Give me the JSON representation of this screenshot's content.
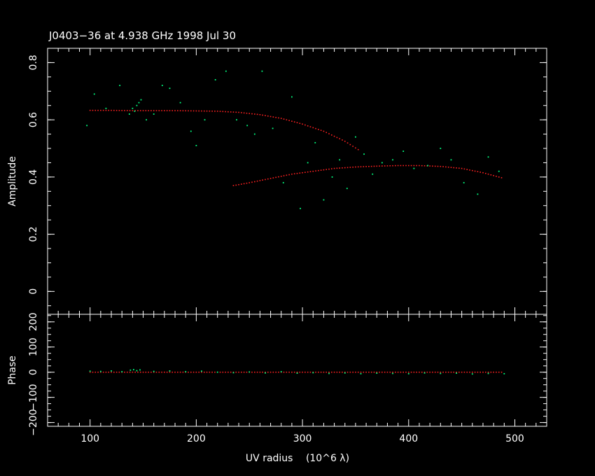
{
  "chart_data": {
    "type": "scatter",
    "title": "J0403−36 at 4.938 GHz 1998 Jul 30",
    "xlabel": "UV radius",
    "xlabel_unit": "(10^6 λ)",
    "xlim": [
      60,
      530
    ],
    "xticks": [
      "100",
      "200",
      "300",
      "400",
      "500"
    ],
    "colors": {
      "data": "#00ff7f",
      "model": "#ff2020",
      "frame": "#ffffff",
      "background": "#000000"
    },
    "panels": [
      {
        "ylabel": "Amplitude",
        "ylim": [
          -0.08,
          0.85
        ],
        "yticks": [
          "0",
          "0.2",
          "0.4",
          "0.6",
          "0.8"
        ],
        "series": [
          {
            "role": "model",
            "points": [
              [
                100,
                0.633
              ],
              [
                120,
                0.633
              ],
              [
                140,
                0.632
              ],
              [
                160,
                0.632
              ],
              [
                180,
                0.632
              ],
              [
                200,
                0.631
              ],
              [
                220,
                0.63
              ],
              [
                240,
                0.626
              ],
              [
                260,
                0.618
              ],
              [
                280,
                0.605
              ],
              [
                300,
                0.585
              ],
              [
                320,
                0.56
              ],
              [
                340,
                0.525
              ],
              [
                355,
                0.49
              ],
              [
                235,
                0.37
              ],
              [
                250,
                0.38
              ],
              [
                270,
                0.395
              ],
              [
                290,
                0.41
              ],
              [
                310,
                0.42
              ],
              [
                330,
                0.43
              ],
              [
                350,
                0.435
              ],
              [
                370,
                0.438
              ],
              [
                390,
                0.44
              ],
              [
                410,
                0.44
              ],
              [
                430,
                0.437
              ],
              [
                450,
                0.43
              ],
              [
                470,
                0.415
              ],
              [
                490,
                0.395
              ]
            ]
          },
          {
            "role": "data",
            "points": [
              [
                97,
                0.58
              ],
              [
                104,
                0.69
              ],
              [
                115,
                0.64
              ],
              [
                128,
                0.72
              ],
              [
                137,
                0.62
              ],
              [
                140,
                0.64
              ],
              [
                142,
                0.63
              ],
              [
                144,
                0.65
              ],
              [
                146,
                0.66
              ],
              [
                148,
                0.67
              ],
              [
                153,
                0.6
              ],
              [
                160,
                0.62
              ],
              [
                168,
                0.72
              ],
              [
                175,
                0.71
              ],
              [
                185,
                0.66
              ],
              [
                195,
                0.56
              ],
              [
                200,
                0.51
              ],
              [
                208,
                0.6
              ],
              [
                218,
                0.74
              ],
              [
                228,
                0.77
              ],
              [
                238,
                0.6
              ],
              [
                248,
                0.58
              ],
              [
                255,
                0.55
              ],
              [
                262,
                0.77
              ],
              [
                272,
                0.57
              ],
              [
                282,
                0.38
              ],
              [
                290,
                0.68
              ],
              [
                298,
                0.29
              ],
              [
                305,
                0.45
              ],
              [
                312,
                0.52
              ],
              [
                320,
                0.32
              ],
              [
                328,
                0.4
              ],
              [
                335,
                0.46
              ],
              [
                342,
                0.36
              ],
              [
                350,
                0.54
              ],
              [
                358,
                0.48
              ],
              [
                366,
                0.41
              ],
              [
                375,
                0.45
              ],
              [
                385,
                0.46
              ],
              [
                395,
                0.49
              ],
              [
                405,
                0.43
              ],
              [
                418,
                0.44
              ],
              [
                430,
                0.5
              ],
              [
                440,
                0.46
              ],
              [
                452,
                0.38
              ],
              [
                465,
                0.34
              ],
              [
                475,
                0.47
              ],
              [
                485,
                0.42
              ]
            ]
          }
        ]
      },
      {
        "ylabel": "Phase",
        "ylim": [
          -215,
          230
        ],
        "yticks": [
          "−200",
          "−100",
          "0",
          "100",
          "200"
        ],
        "series": [
          {
            "role": "model",
            "points": [
              [
                100,
                0
              ],
              [
                150,
                0
              ],
              [
                200,
                0
              ],
              [
                250,
                0
              ],
              [
                300,
                0
              ],
              [
                350,
                0
              ],
              [
                400,
                0
              ],
              [
                450,
                0
              ],
              [
                490,
                0
              ]
            ]
          },
          {
            "role": "data",
            "points": [
              [
                100,
                4
              ],
              [
                110,
                3
              ],
              [
                120,
                5
              ],
              [
                130,
                2
              ],
              [
                138,
                8
              ],
              [
                141,
                10
              ],
              [
                144,
                6
              ],
              [
                147,
                9
              ],
              [
                160,
                3
              ],
              [
                175,
                5
              ],
              [
                190,
                2
              ],
              [
                205,
                4
              ],
              [
                220,
                0
              ],
              [
                235,
                -2
              ],
              [
                250,
                1
              ],
              [
                265,
                -3
              ],
              [
                280,
                2
              ],
              [
                295,
                -4
              ],
              [
                310,
                -2
              ],
              [
                325,
                -5
              ],
              [
                340,
                -3
              ],
              [
                355,
                -6
              ],
              [
                370,
                -4
              ],
              [
                385,
                -5
              ],
              [
                400,
                -6
              ],
              [
                415,
                -3
              ],
              [
                430,
                -5
              ],
              [
                445,
                -4
              ],
              [
                460,
                -7
              ],
              [
                475,
                -5
              ],
              [
                490,
                -6
              ]
            ]
          }
        ]
      }
    ]
  }
}
